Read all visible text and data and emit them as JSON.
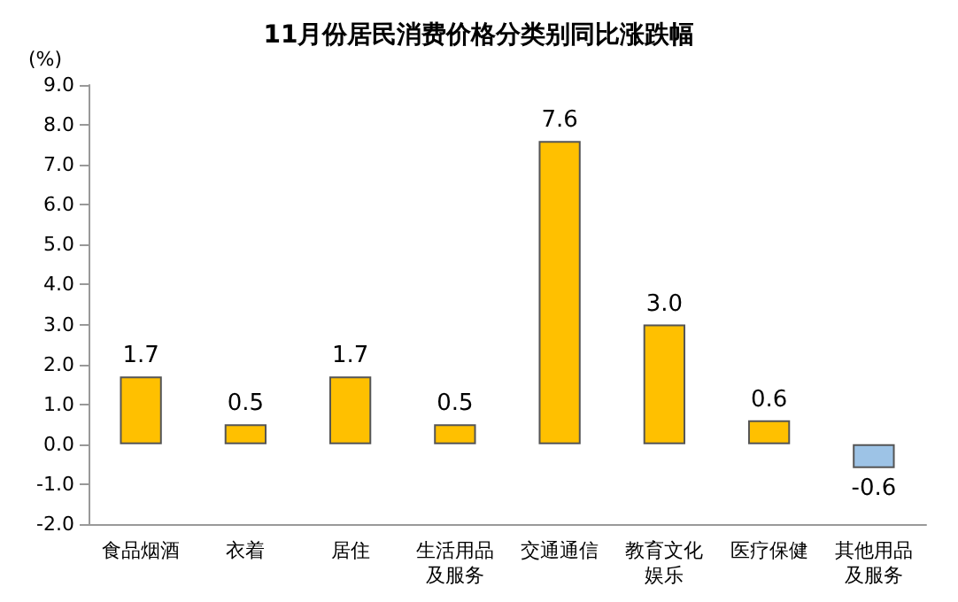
{
  "chart_data": {
    "type": "bar",
    "title": "11月份居民消费价格分类别同比涨跌幅",
    "ylabel": "(%)",
    "categories": [
      "食品烟酒",
      "衣着",
      "居住",
      "生活用品及服务",
      "交通通信",
      "教育文化娱乐",
      "医疗保健",
      "其他用品及服务"
    ],
    "values": [
      1.7,
      0.5,
      1.7,
      0.5,
      7.6,
      3.0,
      0.6,
      -0.6
    ],
    "colors": [
      "#ffc000",
      "#ffc000",
      "#ffc000",
      "#ffc000",
      "#ffc000",
      "#ffc000",
      "#ffc000",
      "#9dc3e6"
    ],
    "value_labels": [
      "1.7",
      "0.5",
      "1.7",
      "0.5",
      "7.6",
      "3.0",
      "0.6",
      "-0.6"
    ],
    "ylim": [
      -2,
      9
    ],
    "yticks": [
      {
        "value": -2,
        "label": "-2.0"
      },
      {
        "value": -1,
        "label": "-1.0"
      },
      {
        "value": 0,
        "label": "0.0"
      },
      {
        "value": 1,
        "label": "1.0"
      },
      {
        "value": 2,
        "label": "2.0"
      },
      {
        "value": 3,
        "label": "3.0"
      },
      {
        "value": 4,
        "label": "4.0"
      },
      {
        "value": 5,
        "label": "5.0"
      },
      {
        "value": 6,
        "label": "6.0"
      },
      {
        "value": 7,
        "label": "7.0"
      },
      {
        "value": 8,
        "label": "8.0"
      },
      {
        "value": 9,
        "label": "9.0"
      }
    ],
    "grid": false
  }
}
